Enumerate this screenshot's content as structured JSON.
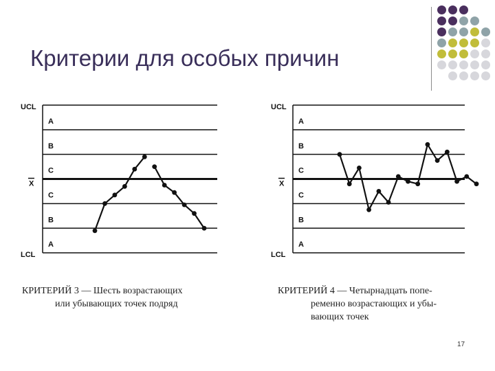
{
  "slide": {
    "title": "Критерии для особых причин",
    "page_number": "17"
  },
  "decor_colors": {
    "purple": "#4a2f5e",
    "gray": "#8fa3a8",
    "olive": "#c1bd3a",
    "light": "#d7d7dc"
  },
  "decor_grid": [
    [
      "purple",
      "purple",
      "purple",
      null,
      null
    ],
    [
      "purple",
      "purple",
      "gray",
      "gray",
      null
    ],
    [
      "purple",
      "gray",
      "gray",
      "olive",
      "gray"
    ],
    [
      "gray",
      "olive",
      "olive",
      "olive",
      "light"
    ],
    [
      "olive",
      "olive",
      "olive",
      "light",
      "light"
    ],
    [
      "light",
      "light",
      "light",
      "light",
      "light"
    ],
    [
      null,
      "light",
      "light",
      "light",
      "light"
    ]
  ],
  "zone_labels": {
    "ucl": "UCL",
    "lcl": "LCL",
    "center": "X",
    "upper": [
      "A",
      "B",
      "C"
    ],
    "lower": [
      "C",
      "B",
      "A"
    ]
  },
  "chart_data": [
    {
      "type": "line",
      "caption": [
        "КРИТЕРИЙ 3 — Шесть возрастающих",
        "или убывающих точек подряд"
      ],
      "y_range": [
        -3,
        3
      ],
      "segments": [
        [
          [
            0,
            -2.1
          ],
          [
            1,
            -1.0
          ],
          [
            2,
            -0.65
          ],
          [
            3,
            -0.3
          ],
          [
            4,
            0.4
          ],
          [
            5,
            0.9
          ]
        ],
        [
          [
            6,
            0.5
          ],
          [
            7,
            -0.25
          ],
          [
            8,
            -0.55
          ],
          [
            9,
            -1.05
          ],
          [
            10,
            -1.4
          ],
          [
            11,
            -2.0
          ]
        ]
      ]
    },
    {
      "type": "line",
      "caption": [
        "КРИТЕРИЙ 4 — Четырнадцать попе-",
        "ременно возрастающих и убы-\nвающих точек"
      ],
      "y_range": [
        -3,
        3
      ],
      "segments": [
        [
          [
            0,
            1.0
          ],
          [
            1,
            -0.2
          ],
          [
            2,
            0.45
          ],
          [
            3,
            -1.25
          ],
          [
            4,
            -0.5
          ],
          [
            5,
            -0.95
          ],
          [
            6,
            0.1
          ],
          [
            7,
            -0.1
          ],
          [
            8,
            -0.2
          ],
          [
            9,
            1.4
          ],
          [
            10,
            0.75
          ],
          [
            11,
            1.1
          ],
          [
            12,
            -0.1
          ],
          [
            13,
            0.1
          ],
          [
            14,
            -0.2
          ]
        ]
      ]
    }
  ]
}
